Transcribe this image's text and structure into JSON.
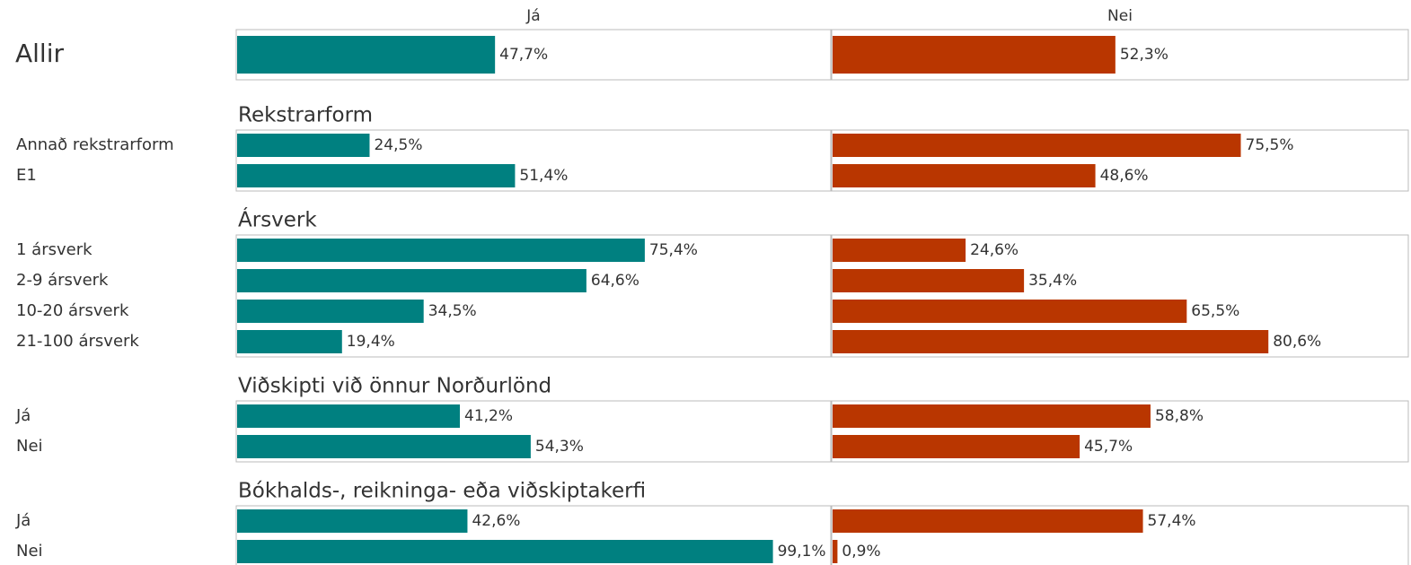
{
  "chart_data": {
    "type": "bar",
    "columns": [
      "Já",
      "Nei"
    ],
    "colors": [
      "#008080",
      "#b93600"
    ],
    "xlim": [
      0,
      100
    ],
    "groups": [
      {
        "rows": [
          {
            "label": "Allir",
            "values": [
              47.7,
              52.3
            ],
            "value_labels": [
              "47,7%",
              "52,3%"
            ]
          }
        ]
      },
      {
        "title": "Rekstrarform",
        "rows": [
          {
            "label": "Annað rekstrarform",
            "values": [
              24.5,
              75.5
            ],
            "value_labels": [
              "24,5%",
              "75,5%"
            ]
          },
          {
            "label": "E1",
            "values": [
              51.4,
              48.6
            ],
            "value_labels": [
              "51,4%",
              "48,6%"
            ]
          }
        ]
      },
      {
        "title": "Ársverk",
        "rows": [
          {
            "label": "1 ársverk",
            "values": [
              75.4,
              24.6
            ],
            "value_labels": [
              "75,4%",
              "24,6%"
            ]
          },
          {
            "label": "2-9 ársverk",
            "values": [
              64.6,
              35.4
            ],
            "value_labels": [
              "64,6%",
              "35,4%"
            ]
          },
          {
            "label": "10-20 ársverk",
            "values": [
              34.5,
              65.5
            ],
            "value_labels": [
              "34,5%",
              "65,5%"
            ]
          },
          {
            "label": "21-100 ársverk",
            "values": [
              19.4,
              80.6
            ],
            "value_labels": [
              "19,4%",
              "80,6%"
            ]
          }
        ]
      },
      {
        "title": "Viðskipti við önnur Norðurlönd",
        "rows": [
          {
            "label": "Já",
            "values": [
              41.2,
              58.8
            ],
            "value_labels": [
              "41,2%",
              "58,8%"
            ]
          },
          {
            "label": "Nei",
            "values": [
              54.3,
              45.7
            ],
            "value_labels": [
              "54,3%",
              "45,7%"
            ]
          }
        ]
      },
      {
        "title": "Bókhalds-, reikninga- eða viðskiptakerfi",
        "rows": [
          {
            "label": "Já",
            "values": [
              42.6,
              57.4
            ],
            "value_labels": [
              "42,6%",
              "57,4%"
            ]
          },
          {
            "label": "Nei",
            "values": [
              99.1,
              0.9
            ],
            "value_labels": [
              "99,1%",
              "0,9%"
            ]
          }
        ]
      }
    ]
  }
}
